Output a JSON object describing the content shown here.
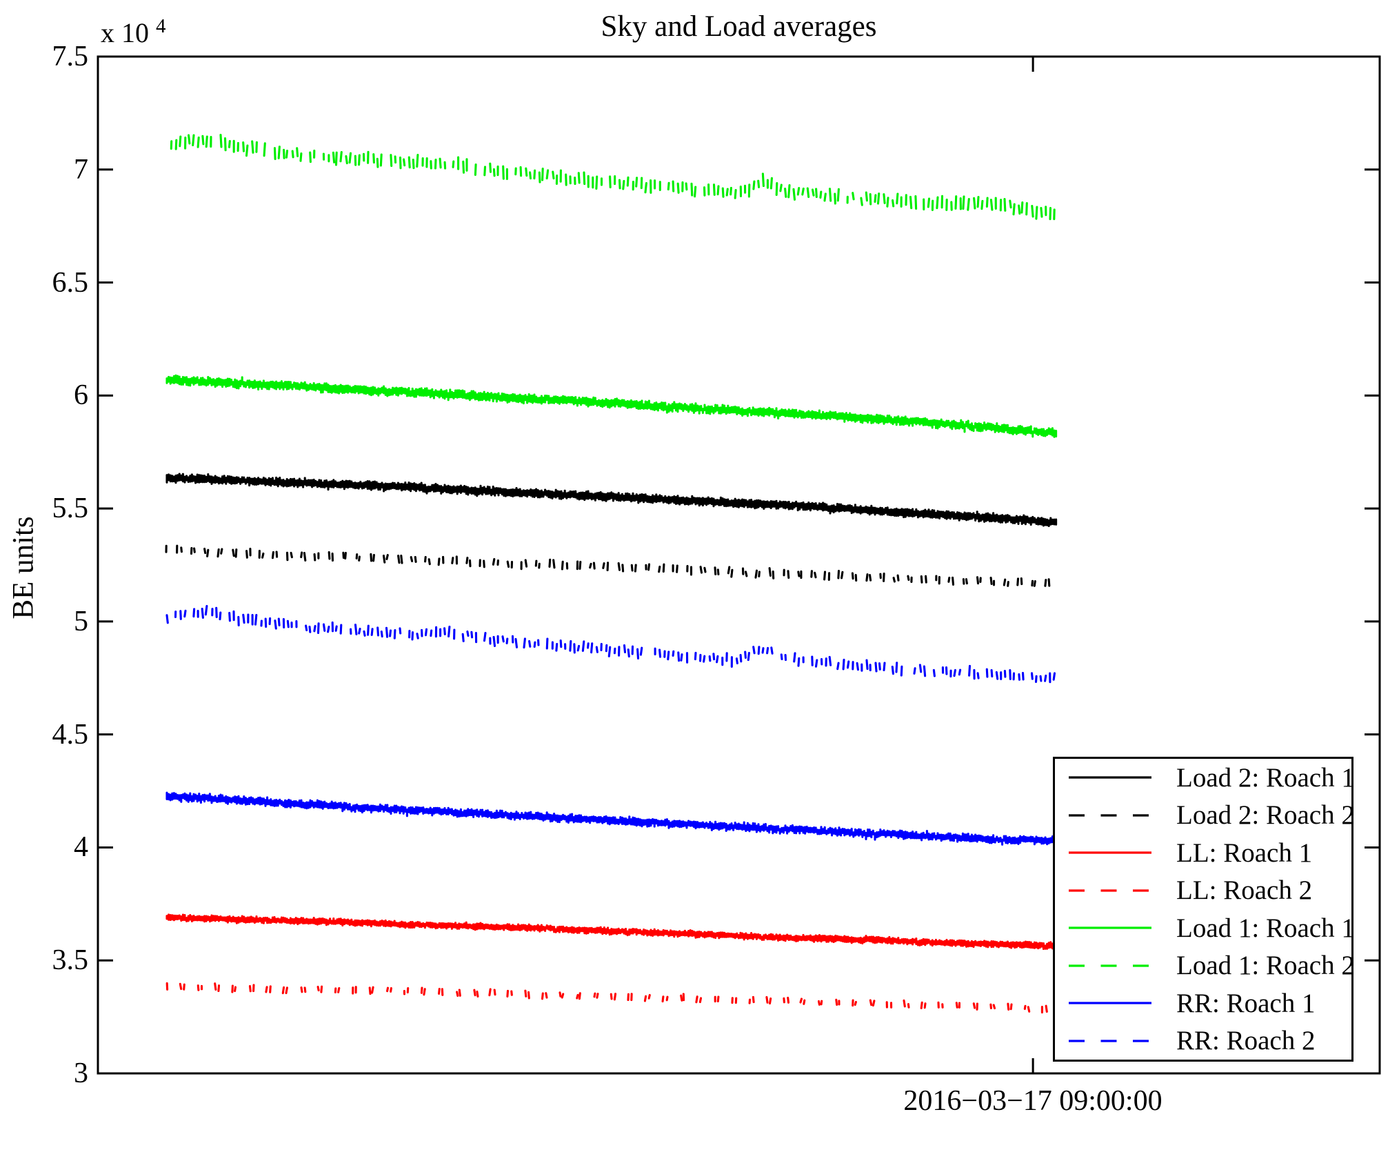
{
  "chart_data": {
    "type": "line",
    "title": "Sky and Load averages",
    "ylabel": "BE units",
    "xlabel": "",
    "x_tick_label": "2016−03−17 09:00:00",
    "offset": {
      "prefix": "x 10",
      "exponent": "4"
    },
    "ylim": [
      30000,
      75000
    ],
    "y_scale": 10000,
    "y_axis_units": "BE units",
    "grid": false,
    "legend_position": "lower right",
    "y_ticks": [
      {
        "label": "7.5",
        "value": 7.5
      },
      {
        "label": "7",
        "value": 7.0
      },
      {
        "label": "6.5",
        "value": 6.5
      },
      {
        "label": "6",
        "value": 6.0
      },
      {
        "label": "5.5",
        "value": 5.5
      },
      {
        "label": "5",
        "value": 5.0
      },
      {
        "label": "4.5",
        "value": 4.5
      },
      {
        "label": "4",
        "value": 4.0
      },
      {
        "label": "3.5",
        "value": 3.5
      },
      {
        "label": "3",
        "value": 3.0
      }
    ],
    "x_tick_axis_fraction": 0.7295,
    "series": [
      {
        "id": "load2-roach1",
        "label": "Load 2: Roach 1",
        "color": "#000000",
        "style": "solid",
        "texture": {
          "step": 2.6,
          "h": [
            6,
            11
          ],
          "jitter": 1.5
        },
        "anchors": [
          [
            0,
            5.635
          ],
          [
            0.08,
            5.625
          ],
          [
            0.16,
            5.61
          ],
          [
            0.24,
            5.6
          ],
          [
            0.32,
            5.585
          ],
          [
            0.4,
            5.57
          ],
          [
            0.48,
            5.555
          ],
          [
            0.56,
            5.54
          ],
          [
            0.64,
            5.525
          ],
          [
            0.72,
            5.51
          ],
          [
            0.8,
            5.49
          ],
          [
            0.88,
            5.47
          ],
          [
            0.94,
            5.455
          ],
          [
            1,
            5.44
          ]
        ]
      },
      {
        "id": "load2-roach2",
        "label": "Load 2: Roach 2",
        "color": "#000000",
        "style": "dashed",
        "texture": {
          "step": 5,
          "h": [
            5,
            11
          ],
          "jitter": 2.5,
          "pattern": [
            2,
            2
          ]
        },
        "anchors": [
          [
            0,
            5.315
          ],
          [
            0.1,
            5.3
          ],
          [
            0.2,
            5.285
          ],
          [
            0.3,
            5.27
          ],
          [
            0.4,
            5.255
          ],
          [
            0.5,
            5.24
          ],
          [
            0.6,
            5.225
          ],
          [
            0.7,
            5.21
          ],
          [
            0.8,
            5.195
          ],
          [
            0.9,
            5.18
          ],
          [
            1,
            5.165
          ]
        ]
      },
      {
        "id": "ll-roach1",
        "label": "LL: Roach 1",
        "color": "#ff0000",
        "style": "solid",
        "texture": {
          "step": 2.6,
          "h": [
            4,
            8
          ],
          "jitter": 1.2
        },
        "anchors": [
          [
            0,
            3.69
          ],
          [
            0.1,
            3.68
          ],
          [
            0.2,
            3.67
          ],
          [
            0.3,
            3.655
          ],
          [
            0.4,
            3.645
          ],
          [
            0.5,
            3.63
          ],
          [
            0.6,
            3.615
          ],
          [
            0.7,
            3.6
          ],
          [
            0.8,
            3.59
          ],
          [
            0.9,
            3.575
          ],
          [
            1,
            3.565
          ]
        ]
      },
      {
        "id": "ll-roach2",
        "label": "LL: Roach 2",
        "color": "#ff0000",
        "style": "dashed",
        "texture": {
          "step": 5,
          "h": [
            4,
            9
          ],
          "jitter": 2,
          "pattern": [
            2,
            3
          ]
        },
        "anchors": [
          [
            0,
            3.385
          ],
          [
            0.1,
            3.375
          ],
          [
            0.2,
            3.37
          ],
          [
            0.3,
            3.36
          ],
          [
            0.4,
            3.35
          ],
          [
            0.5,
            3.34
          ],
          [
            0.6,
            3.33
          ],
          [
            0.7,
            3.32
          ],
          [
            0.8,
            3.31
          ],
          [
            0.9,
            3.295
          ],
          [
            1,
            3.285
          ]
        ]
      },
      {
        "id": "load1-roach1",
        "label": "Load 1: Roach 1",
        "color": "#00ee00",
        "style": "solid",
        "texture": {
          "step": 2.6,
          "h": [
            6,
            11
          ],
          "jitter": 2
        },
        "anchors": [
          [
            0,
            6.07
          ],
          [
            0.1,
            6.05
          ],
          [
            0.2,
            6.03
          ],
          [
            0.3,
            6.008
          ],
          [
            0.4,
            5.988
          ],
          [
            0.5,
            5.965
          ],
          [
            0.6,
            5.942
          ],
          [
            0.7,
            5.92
          ],
          [
            0.8,
            5.895
          ],
          [
            0.9,
            5.868
          ],
          [
            0.95,
            5.85
          ],
          [
            1,
            5.832
          ]
        ]
      },
      {
        "id": "load1-roach2",
        "label": "Load 1: Roach 2",
        "color": "#00ee00",
        "style": "dashed",
        "texture": {
          "step": 6.5,
          "h": [
            8,
            18
          ],
          "jitter": 4,
          "skip": 0.12
        },
        "anchors": [
          [
            0,
            7.11
          ],
          [
            0.02,
            7.12
          ],
          [
            0.045,
            7.135
          ],
          [
            0.08,
            7.1
          ],
          [
            0.12,
            7.075
          ],
          [
            0.16,
            7.06
          ],
          [
            0.2,
            7.05
          ],
          [
            0.24,
            7.04
          ],
          [
            0.28,
            7.03
          ],
          [
            0.315,
            7.025
          ],
          [
            0.35,
            7.005
          ],
          [
            0.39,
            6.985
          ],
          [
            0.43,
            6.97
          ],
          [
            0.47,
            6.955
          ],
          [
            0.51,
            6.94
          ],
          [
            0.55,
            6.925
          ],
          [
            0.585,
            6.915
          ],
          [
            0.62,
            6.9
          ],
          [
            0.64,
            6.89
          ],
          [
            0.658,
            6.925
          ],
          [
            0.668,
            6.945
          ],
          [
            0.682,
            6.925
          ],
          [
            0.7,
            6.9
          ],
          [
            0.74,
            6.88
          ],
          [
            0.78,
            6.87
          ],
          [
            0.82,
            6.86
          ],
          [
            0.86,
            6.85
          ],
          [
            0.895,
            6.845
          ],
          [
            0.925,
            6.855
          ],
          [
            0.95,
            6.835
          ],
          [
            0.975,
            6.815
          ],
          [
            1,
            6.81
          ]
        ]
      },
      {
        "id": "rr-roach1",
        "label": "RR: Roach 1",
        "color": "#0000ff",
        "style": "solid",
        "texture": {
          "step": 2.6,
          "h": [
            5,
            10
          ],
          "jitter": 2
        },
        "anchors": [
          [
            0,
            4.225
          ],
          [
            0.06,
            4.215
          ],
          [
            0.12,
            4.2
          ],
          [
            0.2,
            4.18
          ],
          [
            0.3,
            4.16
          ],
          [
            0.4,
            4.14
          ],
          [
            0.5,
            4.12
          ],
          [
            0.6,
            4.1
          ],
          [
            0.7,
            4.08
          ],
          [
            0.8,
            4.06
          ],
          [
            0.88,
            4.045
          ],
          [
            0.94,
            4.035
          ],
          [
            1,
            4.03
          ]
        ]
      },
      {
        "id": "rr-roach2",
        "label": "RR: Roach 2",
        "color": "#0000ff",
        "style": "dashed",
        "texture": {
          "step": 6.5,
          "h": [
            6,
            14
          ],
          "jitter": 3.5,
          "skip": 0.12
        },
        "anchors": [
          [
            0,
            5.02
          ],
          [
            0.02,
            5.03
          ],
          [
            0.045,
            5.05
          ],
          [
            0.08,
            5.01
          ],
          [
            0.12,
            4.99
          ],
          [
            0.16,
            4.975
          ],
          [
            0.2,
            4.962
          ],
          [
            0.24,
            4.952
          ],
          [
            0.28,
            4.945
          ],
          [
            0.31,
            4.95
          ],
          [
            0.34,
            4.935
          ],
          [
            0.38,
            4.915
          ],
          [
            0.42,
            4.9
          ],
          [
            0.46,
            4.888
          ],
          [
            0.5,
            4.875
          ],
          [
            0.54,
            4.862
          ],
          [
            0.58,
            4.85
          ],
          [
            0.61,
            4.84
          ],
          [
            0.64,
            4.828
          ],
          [
            0.658,
            4.862
          ],
          [
            0.668,
            4.878
          ],
          [
            0.682,
            4.858
          ],
          [
            0.7,
            4.835
          ],
          [
            0.74,
            4.818
          ],
          [
            0.78,
            4.803
          ],
          [
            0.82,
            4.792
          ],
          [
            0.86,
            4.782
          ],
          [
            0.9,
            4.772
          ],
          [
            0.94,
            4.762
          ],
          [
            0.97,
            4.755
          ],
          [
            1,
            4.75
          ]
        ]
      }
    ]
  },
  "legend": {
    "entries": [
      {
        "label": "Load 2: Roach 1",
        "color": "#000000",
        "style": "solid"
      },
      {
        "label": "Load 2: Roach 2",
        "color": "#000000",
        "style": "dashed"
      },
      {
        "label": "LL: Roach 1",
        "color": "#ff0000",
        "style": "solid"
      },
      {
        "label": "LL: Roach 2",
        "color": "#ff0000",
        "style": "dashed"
      },
      {
        "label": "Load 1: Roach 1",
        "color": "#00ee00",
        "style": "solid"
      },
      {
        "label": "Load 1: Roach 2",
        "color": "#00ee00",
        "style": "dashed"
      },
      {
        "label": "RR: Roach 1",
        "color": "#0000ff",
        "style": "solid"
      },
      {
        "label": "RR: Roach 2",
        "color": "#0000ff",
        "style": "dashed"
      }
    ]
  }
}
